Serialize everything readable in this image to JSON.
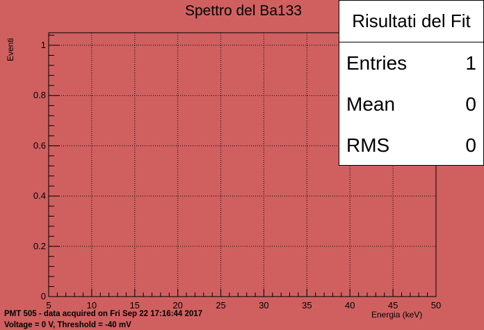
{
  "chart_data": {
    "type": "histogram",
    "title": "Spettro del Ba133",
    "xlabel": "Energia (keV)",
    "ylabel": "Eventi",
    "xlim": [
      5,
      50
    ],
    "ylim": [
      0,
      1.05
    ],
    "x_ticks": [
      "5",
      "10",
      "15",
      "20",
      "25",
      "30",
      "35",
      "40",
      "45",
      "50"
    ],
    "y_ticks": [
      "0",
      "0.2",
      "0.4",
      "0.6",
      "0.8",
      "1"
    ],
    "grid": true,
    "values": []
  },
  "stats": {
    "header": "Risultati del Fit",
    "rows": [
      {
        "label": "Entries",
        "value": "1"
      },
      {
        "label": "Mean",
        "value": "0"
      },
      {
        "label": "RMS",
        "value": "0"
      }
    ]
  },
  "footer": {
    "line1": "PMT 505 - data acquired on Fri Sep 22 17:16:44 2017",
    "line2": "Voltage =  0 V, Threshold = -40 mV"
  },
  "colors": {
    "background": "#d06060",
    "frame": "#000000"
  }
}
